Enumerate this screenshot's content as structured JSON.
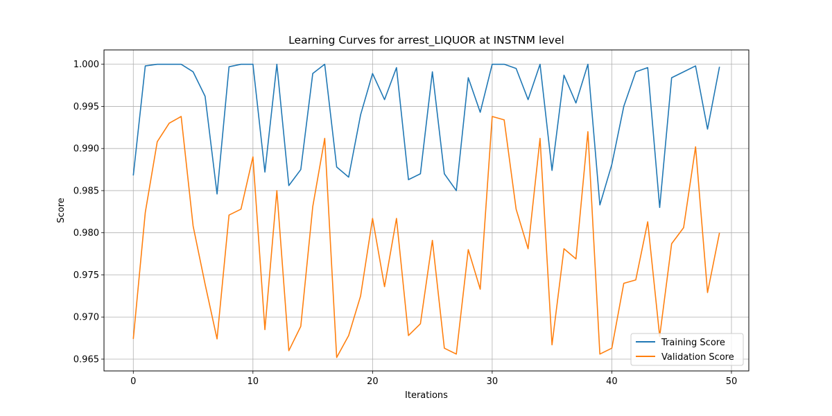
{
  "chart_data": {
    "type": "line",
    "title": "Learning Curves for arrest_LIQUOR at INSTNM level",
    "xlabel": "Iterations",
    "ylabel": "Score",
    "xlim": [
      -2.45,
      51.45
    ],
    "ylim": [
      0.9636,
      1.0017
    ],
    "xticks": [
      0,
      10,
      20,
      30,
      40,
      50
    ],
    "xtick_labels": [
      "0",
      "10",
      "20",
      "30",
      "40",
      "50"
    ],
    "yticks": [
      0.965,
      0.97,
      0.975,
      0.98,
      0.985,
      0.99,
      0.995,
      1.0
    ],
    "ytick_labels": [
      "0.965",
      "0.970",
      "0.975",
      "0.980",
      "0.985",
      "0.990",
      "0.995",
      "1.000"
    ],
    "grid": true,
    "legend_position": "lower-right",
    "x": [
      0,
      1,
      2,
      3,
      4,
      5,
      6,
      7,
      8,
      9,
      10,
      11,
      12,
      13,
      14,
      15,
      16,
      17,
      18,
      19,
      20,
      21,
      22,
      23,
      24,
      25,
      26,
      27,
      28,
      29,
      30,
      31,
      32,
      33,
      34,
      35,
      36,
      37,
      38,
      39,
      40,
      41,
      42,
      43,
      44,
      45,
      46,
      47,
      48,
      49
    ],
    "series": [
      {
        "name": "Training Score",
        "color": "#1f77b4",
        "values": [
          0.9868,
          0.9998,
          1.0,
          1.0,
          1.0,
          0.9991,
          0.9962,
          0.9846,
          0.9997,
          1.0,
          1.0,
          0.9872,
          1.0,
          0.9856,
          0.9875,
          0.9989,
          1.0,
          0.9878,
          0.9866,
          0.994,
          0.9989,
          0.9958,
          0.9996,
          0.9863,
          0.987,
          0.9991,
          0.987,
          0.985,
          0.9984,
          0.9943,
          1.0,
          1.0,
          0.9995,
          0.9958,
          1.0,
          0.9874,
          0.9987,
          0.9954,
          1.0,
          0.9833,
          0.9881,
          0.995,
          0.9991,
          0.9996,
          0.983,
          0.9984,
          0.9991,
          0.9998,
          0.9923,
          0.9997
        ]
      },
      {
        "name": "Validation Score",
        "color": "#ff7f0e",
        "values": [
          0.9674,
          0.9824,
          0.9908,
          0.993,
          0.9938,
          0.9808,
          0.9739,
          0.9674,
          0.9821,
          0.9828,
          0.989,
          0.9685,
          0.985,
          0.966,
          0.9689,
          0.9831,
          0.9912,
          0.9652,
          0.9678,
          0.9725,
          0.9817,
          0.9736,
          0.9817,
          0.9678,
          0.9692,
          0.9791,
          0.9663,
          0.9656,
          0.978,
          0.9733,
          0.9938,
          0.9934,
          0.9828,
          0.9781,
          0.9912,
          0.9667,
          0.9781,
          0.9769,
          0.992,
          0.9656,
          0.9663,
          0.974,
          0.9744,
          0.9813,
          0.9677,
          0.9787,
          0.9806,
          0.9902,
          0.9729,
          0.98
        ]
      }
    ]
  }
}
